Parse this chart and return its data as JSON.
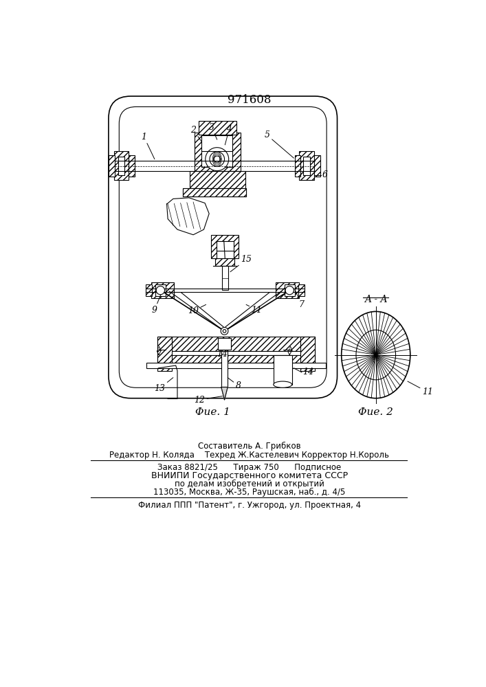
{
  "patent_number": "971608",
  "background_color": "#ffffff",
  "line_color": "#000000",
  "fig1_caption": "Φue. 1",
  "fig2_caption": "Φue. 2",
  "fig2_label": "A - A",
  "footer_line1": "Составитель А. Грибков",
  "footer_line2": "Редактор Н. Коляда    Техред Ж.Кастелевич Корректор Н.Король",
  "footer_line3": "Заказ 8821/25      Тираж 750      Подписное",
  "footer_line4": "ВНИИПИ Государственного комитета СССР",
  "footer_line5": "по делам изобретений и открытий",
  "footer_line6": "113035, Москва, Ж-35, Раушская, наб., д. 4/5",
  "footer_line7": "Филиал ППП \"Патент\", г. Ужгород, ул. Проектная, 4"
}
